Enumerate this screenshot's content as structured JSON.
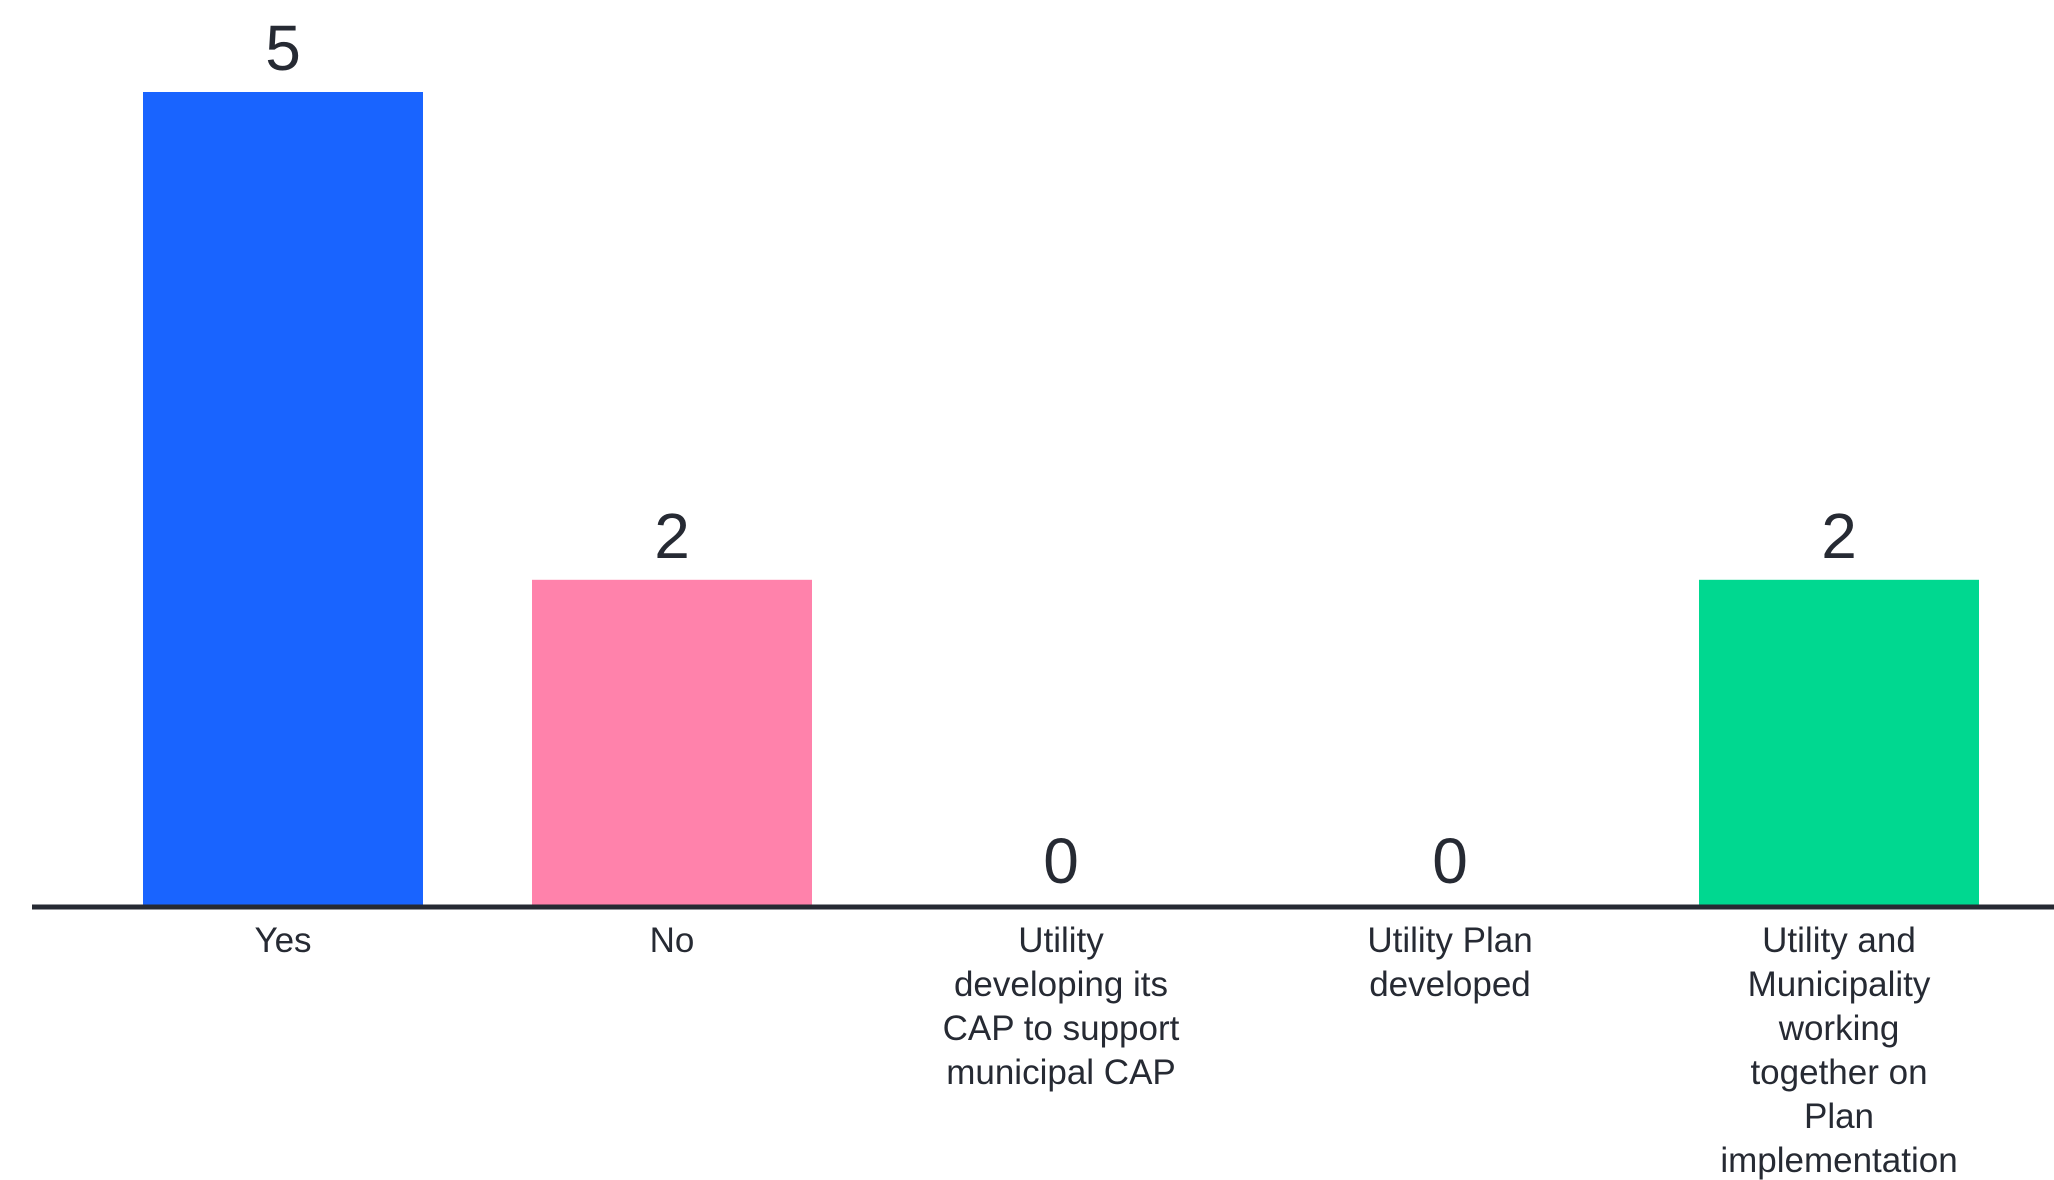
{
  "chart_data": {
    "type": "bar",
    "title": "",
    "xlabel": "",
    "ylabel": "",
    "ylim": [
      0,
      5
    ],
    "grid": false,
    "legend": "none",
    "categories": [
      "Yes",
      "No",
      "Utility developing its CAP to support municipal CAP",
      "Utility Plan developed",
      "Utility and Municipality working together on Plan implementation"
    ],
    "category_lines": [
      [
        "Yes"
      ],
      [
        "No"
      ],
      [
        "Utility",
        "developing its",
        "CAP to support",
        "municipal CAP"
      ],
      [
        "Utility Plan",
        "developed"
      ],
      [
        "Utility and",
        "Municipality",
        "working",
        "together on",
        "Plan",
        "implementation"
      ]
    ],
    "values": [
      5,
      2,
      0,
      0,
      2
    ],
    "value_labels": [
      "5",
      "2",
      "0",
      "0",
      "2"
    ],
    "colors": [
      "#1964ff",
      "#ff82ab",
      "#1964ff",
      "#1964ff",
      "#00d890"
    ],
    "axis_color": "#262a33",
    "text_color": "#262a33"
  }
}
